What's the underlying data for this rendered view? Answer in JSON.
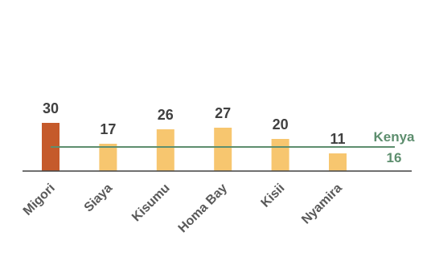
{
  "chart_data": {
    "type": "bar",
    "categories": [
      "Migori",
      "Siaya",
      "Kisumu",
      "Homa Bay",
      "Kisii",
      "Nyamira"
    ],
    "values": [
      30,
      17,
      26,
      27,
      20,
      11
    ],
    "data_labels": [
      "30",
      "17",
      "26",
      "27",
      "20",
      "11"
    ],
    "highlight_category": "Migori",
    "reference_line": {
      "label": "Kenya",
      "value": 16,
      "value_label": "16"
    },
    "ylim": [
      0,
      30
    ],
    "grid": false,
    "legend": "none",
    "colors": {
      "highlight": "#C55A2B",
      "bar": "#F7C66F",
      "reference_line": "#5D8E6E",
      "reference_text": "#5D8E6E",
      "axis": "#404040"
    }
  }
}
